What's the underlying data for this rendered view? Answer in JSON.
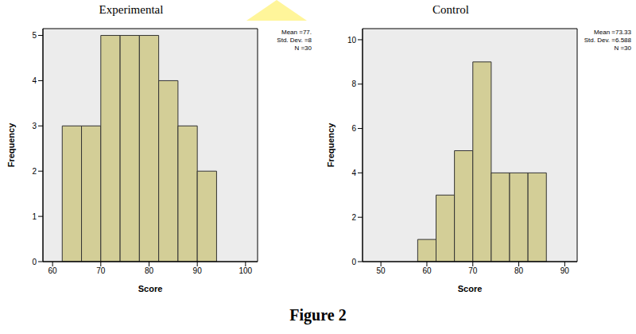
{
  "chart_data": [
    {
      "type": "histogram",
      "title": "Experimental",
      "x_label": "Score",
      "y_label": "Frequency",
      "bins": [
        62,
        66,
        70,
        74,
        78,
        82,
        86,
        90,
        94
      ],
      "counts": [
        3,
        3,
        5,
        5,
        5,
        4,
        3,
        2
      ],
      "color": "#d3ce97",
      "xlim": [
        58,
        102.5
      ],
      "xticks": [
        60,
        70,
        80,
        90,
        100
      ],
      "ylim": [
        0,
        5.15
      ],
      "yticks": [
        0,
        1,
        2,
        3,
        4,
        5
      ],
      "annotations": [
        "Mean =77.",
        "Std. Dev. =8",
        "N =30"
      ]
    },
    {
      "type": "histogram",
      "title": "Control",
      "x_label": "Score",
      "y_label": "Frequency",
      "bins": [
        58,
        62,
        66,
        70,
        74,
        78,
        82,
        86
      ],
      "counts": [
        1,
        3,
        5,
        9,
        4,
        4,
        4
      ],
      "color": "#d3ce97",
      "xlim": [
        46,
        92.7
      ],
      "xticks": [
        50,
        60,
        70,
        80,
        90
      ],
      "ylim": [
        0,
        10.5
      ],
      "yticks": [
        0,
        2,
        4,
        6,
        8,
        10
      ],
      "annotations": [
        "Mean =73.33",
        "Std. Dev. =6.588",
        "N =30"
      ]
    }
  ],
  "caption": "Figure 2"
}
